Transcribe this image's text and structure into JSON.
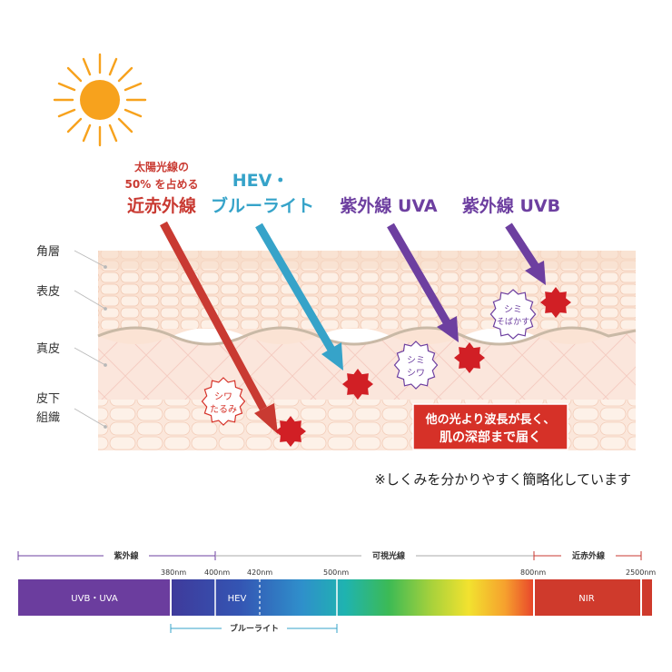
{
  "colors": {
    "nir": "#c93a32",
    "hev": "#36a3c9",
    "uva": "#6d3fa0",
    "uvb": "#6d3fa0",
    "sun": "#f7a21d",
    "skin_light": "#fbe7da",
    "skin_mid": "#f7d7c3",
    "burst": "#d11f25",
    "callout": "#d63128"
  },
  "icons": [
    "sun-icon",
    "burst-icon"
  ],
  "rays": {
    "nir": {
      "line1": "太陽光線の",
      "line2": "50% を占める",
      "label": "近赤外線"
    },
    "hev": {
      "line1": "HEV・",
      "label": "ブルーライト"
    },
    "uva": {
      "label": "紫外線 UVA"
    },
    "uvb": {
      "label": "紫外線 UVB"
    }
  },
  "layers": [
    "角層",
    "表皮",
    "真皮",
    "皮下",
    "組織"
  ],
  "badges": {
    "nir": [
      "シワ",
      "たるみ"
    ],
    "uva": [
      "シミ",
      "シワ"
    ],
    "uvb": [
      "シミ",
      "そばかす"
    ]
  },
  "callout": {
    "line1": "他の光より波長が長く、",
    "line2": "肌の深部まで届く"
  },
  "note": "※しくみを分かりやすく簡略化しています",
  "spectrum": {
    "ranges": {
      "uv": "紫外線",
      "visible": "可視光線",
      "ir": "近赤外線"
    },
    "ticks": [
      "380nm",
      "400nm",
      "420nm",
      "500nm",
      "800nm",
      "2500nm"
    ],
    "bands": {
      "uv": "UVB・UVA",
      "hev": "HEV",
      "nir": "NIR"
    },
    "bluelight": "ブルーライト"
  }
}
